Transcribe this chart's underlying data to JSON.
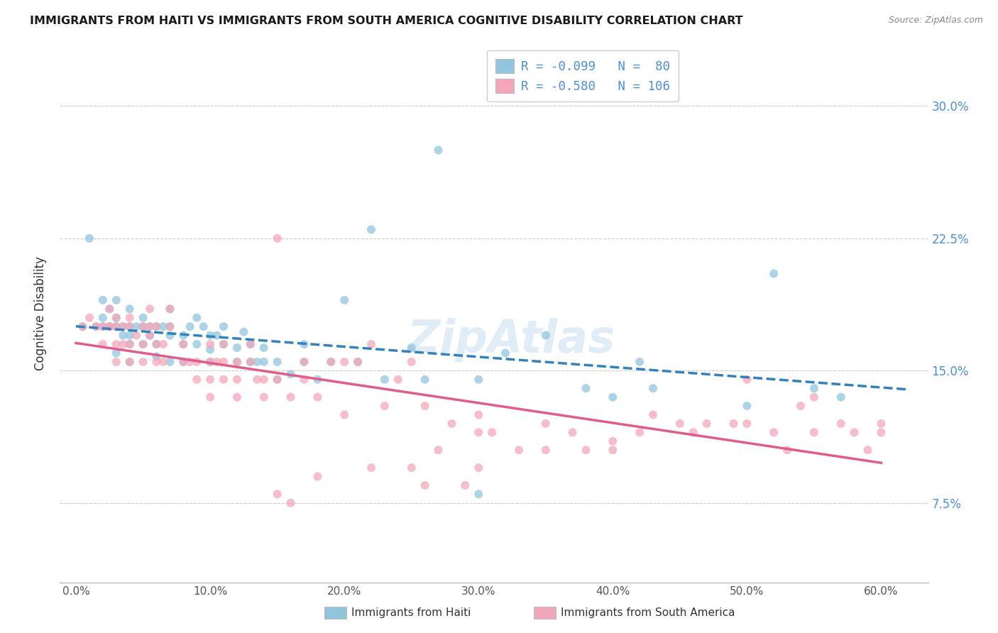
{
  "title": "IMMIGRANTS FROM HAITI VS IMMIGRANTS FROM SOUTH AMERICA COGNITIVE DISABILITY CORRELATION CHART",
  "source": "Source: ZipAtlas.com",
  "ylabel": "Cognitive Disability",
  "ytick_labels": [
    "7.5%",
    "15.0%",
    "22.5%",
    "30.0%"
  ],
  "ytick_vals": [
    0.075,
    0.15,
    0.225,
    0.3
  ],
  "xtick_labels": [
    "0.0%",
    "10.0%",
    "20.0%",
    "30.0%",
    "40.0%",
    "50.0%",
    "60.0%"
  ],
  "xtick_vals": [
    0.0,
    0.1,
    0.2,
    0.3,
    0.4,
    0.5,
    0.6
  ],
  "xlim": [
    -0.012,
    0.635
  ],
  "ylim": [
    0.03,
    0.335
  ],
  "haiti_R": -0.099,
  "haiti_N": 80,
  "sa_R": -0.58,
  "sa_N": 106,
  "haiti_scatter_color": "#92c5de",
  "sa_scatter_color": "#f4a7b9",
  "haiti_line_color": "#3182bd",
  "sa_line_color": "#e05c8a",
  "legend_label_haiti": "Immigrants from Haiti",
  "legend_label_sa": "Immigrants from South America",
  "watermark": "ZipAtlas",
  "haiti_scatter_x": [
    0.005,
    0.01,
    0.015,
    0.02,
    0.02,
    0.02,
    0.025,
    0.025,
    0.03,
    0.03,
    0.03,
    0.03,
    0.035,
    0.035,
    0.04,
    0.04,
    0.04,
    0.04,
    0.04,
    0.045,
    0.05,
    0.05,
    0.05,
    0.055,
    0.055,
    0.06,
    0.06,
    0.06,
    0.065,
    0.07,
    0.07,
    0.07,
    0.07,
    0.08,
    0.08,
    0.08,
    0.085,
    0.09,
    0.09,
    0.095,
    0.1,
    0.1,
    0.1,
    0.105,
    0.11,
    0.11,
    0.12,
    0.12,
    0.125,
    0.13,
    0.13,
    0.135,
    0.14,
    0.14,
    0.15,
    0.15,
    0.16,
    0.17,
    0.17,
    0.18,
    0.19,
    0.2,
    0.21,
    0.22,
    0.23,
    0.25,
    0.26,
    0.27,
    0.3,
    0.32,
    0.35,
    0.38,
    0.4,
    0.42,
    0.43,
    0.5,
    0.52,
    0.55,
    0.57,
    0.3
  ],
  "haiti_scatter_y": [
    0.175,
    0.225,
    0.175,
    0.175,
    0.18,
    0.19,
    0.175,
    0.185,
    0.16,
    0.175,
    0.18,
    0.19,
    0.175,
    0.17,
    0.155,
    0.165,
    0.17,
    0.175,
    0.185,
    0.175,
    0.165,
    0.175,
    0.18,
    0.17,
    0.175,
    0.158,
    0.165,
    0.175,
    0.175,
    0.155,
    0.17,
    0.175,
    0.185,
    0.155,
    0.165,
    0.17,
    0.175,
    0.165,
    0.18,
    0.175,
    0.155,
    0.162,
    0.17,
    0.17,
    0.165,
    0.175,
    0.155,
    0.163,
    0.172,
    0.155,
    0.165,
    0.155,
    0.155,
    0.163,
    0.145,
    0.155,
    0.148,
    0.155,
    0.165,
    0.145,
    0.155,
    0.19,
    0.155,
    0.23,
    0.145,
    0.163,
    0.145,
    0.275,
    0.145,
    0.16,
    0.17,
    0.14,
    0.135,
    0.155,
    0.14,
    0.13,
    0.205,
    0.14,
    0.135,
    0.08
  ],
  "sa_scatter_x": [
    0.005,
    0.01,
    0.015,
    0.02,
    0.02,
    0.025,
    0.025,
    0.025,
    0.03,
    0.03,
    0.03,
    0.03,
    0.035,
    0.035,
    0.04,
    0.04,
    0.04,
    0.04,
    0.045,
    0.05,
    0.05,
    0.05,
    0.055,
    0.055,
    0.055,
    0.06,
    0.06,
    0.06,
    0.065,
    0.065,
    0.07,
    0.07,
    0.08,
    0.08,
    0.085,
    0.09,
    0.09,
    0.1,
    0.1,
    0.1,
    0.1,
    0.105,
    0.11,
    0.11,
    0.11,
    0.12,
    0.12,
    0.12,
    0.13,
    0.13,
    0.135,
    0.14,
    0.14,
    0.15,
    0.15,
    0.16,
    0.17,
    0.17,
    0.18,
    0.19,
    0.2,
    0.2,
    0.21,
    0.22,
    0.23,
    0.24,
    0.25,
    0.26,
    0.27,
    0.28,
    0.3,
    0.3,
    0.31,
    0.33,
    0.35,
    0.37,
    0.4,
    0.42,
    0.43,
    0.45,
    0.47,
    0.49,
    0.5,
    0.52,
    0.53,
    0.55,
    0.55,
    0.57,
    0.58,
    0.59,
    0.6,
    0.6,
    0.25,
    0.29,
    0.15,
    0.16,
    0.18,
    0.22,
    0.26,
    0.3,
    0.35,
    0.38,
    0.4,
    0.46,
    0.5,
    0.54
  ],
  "sa_scatter_y": [
    0.175,
    0.18,
    0.175,
    0.165,
    0.175,
    0.175,
    0.185,
    0.175,
    0.155,
    0.165,
    0.175,
    0.18,
    0.165,
    0.175,
    0.155,
    0.165,
    0.175,
    0.18,
    0.17,
    0.155,
    0.165,
    0.175,
    0.17,
    0.175,
    0.185,
    0.155,
    0.165,
    0.175,
    0.155,
    0.165,
    0.175,
    0.185,
    0.155,
    0.165,
    0.155,
    0.145,
    0.155,
    0.135,
    0.145,
    0.155,
    0.165,
    0.155,
    0.145,
    0.155,
    0.165,
    0.135,
    0.145,
    0.155,
    0.155,
    0.165,
    0.145,
    0.135,
    0.145,
    0.225,
    0.145,
    0.135,
    0.145,
    0.155,
    0.135,
    0.155,
    0.155,
    0.125,
    0.155,
    0.165,
    0.13,
    0.145,
    0.155,
    0.13,
    0.105,
    0.12,
    0.115,
    0.125,
    0.115,
    0.105,
    0.12,
    0.115,
    0.105,
    0.115,
    0.125,
    0.12,
    0.12,
    0.12,
    0.145,
    0.115,
    0.105,
    0.115,
    0.135,
    0.12,
    0.115,
    0.105,
    0.115,
    0.12,
    0.095,
    0.085,
    0.08,
    0.075,
    0.09,
    0.095,
    0.085,
    0.095,
    0.105,
    0.105,
    0.11,
    0.115,
    0.12,
    0.13
  ]
}
